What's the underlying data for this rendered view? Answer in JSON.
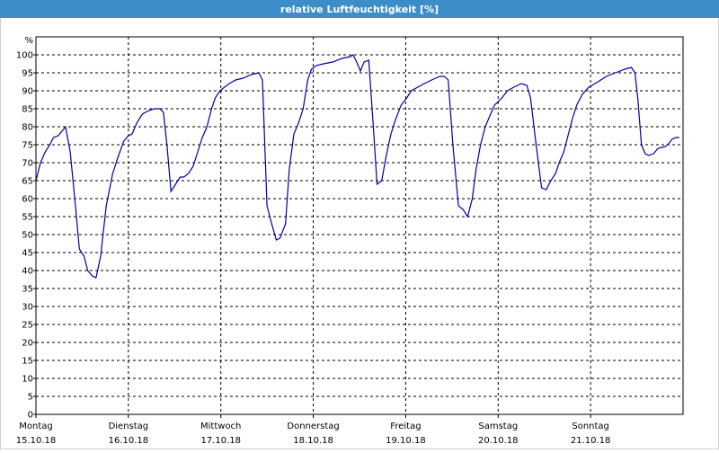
{
  "chart_data": {
    "type": "line",
    "title": "relative Luftfeuchtigkeit [%]",
    "y_unit": "%",
    "xlim": [
      0,
      7
    ],
    "ylim": [
      0,
      105
    ],
    "xticks": [
      {
        "value": 0,
        "label": "Montag",
        "date": "15.10.18"
      },
      {
        "value": 1,
        "label": "Dienstag",
        "date": "16.10.18"
      },
      {
        "value": 2,
        "label": "Mittwoch",
        "date": "17.10.18"
      },
      {
        "value": 3,
        "label": "Donnerstag",
        "date": "18.10.18"
      },
      {
        "value": 4,
        "label": "Freitag",
        "date": "19.10.18"
      },
      {
        "value": 5,
        "label": "Samstag",
        "date": "20.10.18"
      },
      {
        "value": 6,
        "label": "Sonntag",
        "date": "21.10.18"
      }
    ],
    "yticks": [
      0,
      5,
      10,
      15,
      20,
      25,
      30,
      35,
      40,
      45,
      50,
      55,
      60,
      65,
      70,
      75,
      80,
      85,
      90,
      95,
      100
    ],
    "grid": true,
    "series": [
      {
        "color": "#0000a0",
        "x": [
          0,
          0.05,
          0.1,
          0.15,
          0.19,
          0.24,
          0.29,
          0.32,
          0.37,
          0.42,
          0.47,
          0.52,
          0.56,
          0.61,
          0.65,
          0.7,
          0.76,
          0.83,
          0.88,
          0.95,
          1.0,
          1.04,
          1.09,
          1.15,
          1.22,
          1.28,
          1.34,
          1.38,
          1.42,
          1.46,
          1.51,
          1.56,
          1.6,
          1.65,
          1.7,
          1.75,
          1.8,
          1.85,
          1.9,
          1.94,
          1.99,
          2.04,
          2.09,
          2.16,
          2.24,
          2.33,
          2.41,
          2.45,
          2.5,
          2.55,
          2.6,
          2.64,
          2.7,
          2.74,
          2.79,
          2.84,
          2.89,
          2.94,
          2.98,
          3.03,
          3.11,
          3.21,
          3.31,
          3.4,
          3.43,
          3.47,
          3.51,
          3.55,
          3.6,
          3.65,
          3.69,
          3.74,
          3.79,
          3.84,
          3.89,
          3.95,
          4.01,
          4.06,
          4.13,
          4.2,
          4.28,
          4.37,
          4.42,
          4.46,
          4.51,
          4.57,
          4.62,
          4.67,
          4.72,
          4.76,
          4.81,
          4.86,
          4.91,
          4.96,
          5.04,
          5.1,
          5.17,
          5.25,
          5.31,
          5.35,
          5.41,
          5.47,
          5.52,
          5.57,
          5.62,
          5.66,
          5.71,
          5.76,
          5.8,
          5.85,
          5.91,
          5.98,
          6.08,
          6.17,
          6.27,
          6.37,
          6.44,
          6.48,
          6.51,
          6.55,
          6.59,
          6.63,
          6.68,
          6.73,
          6.81,
          6.85,
          6.88,
          6.92,
          6.96
        ],
        "values": [
          65,
          70,
          73,
          75,
          77,
          77.5,
          79,
          80,
          73,
          60,
          46,
          44,
          40,
          38.5,
          38,
          44,
          58,
          67,
          71,
          76,
          77.5,
          78,
          81,
          83.5,
          84.5,
          85,
          85,
          84,
          74,
          62,
          64,
          66,
          66,
          67,
          69,
          73,
          77,
          80,
          85,
          88,
          90,
          91,
          92,
          93,
          93.5,
          94.5,
          95,
          93,
          58,
          53,
          48.5,
          49,
          53,
          68,
          78,
          81,
          85,
          93,
          96,
          97,
          97.5,
          98,
          99,
          99.5,
          100,
          98,
          95.5,
          98,
          98.5,
          80,
          64,
          65,
          72,
          78,
          82,
          86,
          88,
          90,
          91,
          92,
          93,
          94,
          94,
          93,
          75,
          58,
          57,
          55,
          60,
          68,
          75,
          80,
          83,
          86,
          88,
          90,
          91,
          92,
          91.5,
          88,
          75,
          63,
          62.5,
          65,
          67,
          70,
          73,
          78,
          82,
          86,
          89,
          91,
          92.5,
          94,
          95,
          96,
          96.5,
          95,
          88,
          75,
          72.5,
          72,
          72.5,
          74,
          74.5,
          75.5,
          76.5,
          77,
          77
        ]
      }
    ]
  }
}
